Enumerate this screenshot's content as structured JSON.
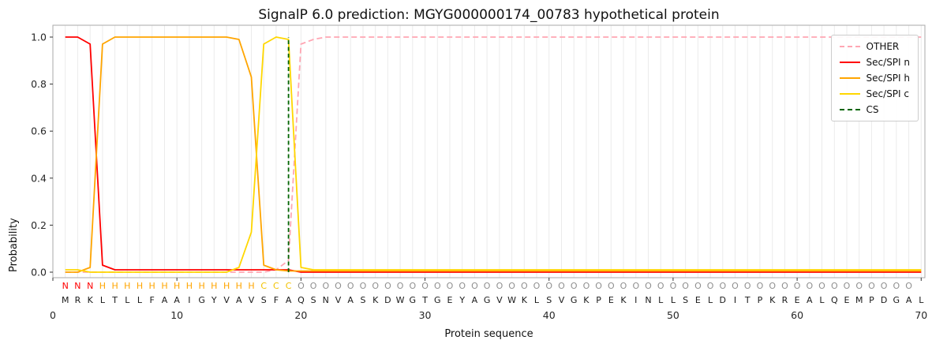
{
  "title": "SignalP 6.0 prediction: MGYG000000174_00783 hypothetical protein",
  "legend": {
    "entries": [
      {
        "label": "OTHER",
        "color": "#ffa6b3",
        "dashed": true
      },
      {
        "label": "Sec/SPI n",
        "color": "#ff0000",
        "dashed": false
      },
      {
        "label": "Sec/SPI h",
        "color": "#ffa500",
        "dashed": false
      },
      {
        "label": "Sec/SPI c",
        "color": "#ffd700",
        "dashed": false
      },
      {
        "label": "CS",
        "color": "#006400",
        "dashed": true
      }
    ]
  },
  "chart_data": {
    "type": "line",
    "title": "SignalP 6.0 prediction: MGYG000000174_00783 hypothetical protein",
    "xlabel": "Protein sequence",
    "ylabel": "Probability",
    "xlim": [
      0,
      70.3
    ],
    "ylim": [
      -0.05,
      1.05
    ],
    "x_ticks": [
      0,
      10,
      20,
      30,
      40,
      50,
      60,
      70
    ],
    "y_ticks": [
      0,
      0.2,
      0.4,
      0.6,
      0.8,
      1
    ],
    "grid": "vertical-line-per-residue",
    "legend_position": "upper right",
    "sequence": "MRKLTLLFAAIGYVAVSFAQSNVASKDWGTGEYAGVWKLSVGKPEKINLLSELDITPKREALQEMPDGAL",
    "regions": "NNNHHHHHHHHHHHHHCCCOOOOOOOOOOOOOOOOOOOOOOOOOOOOOOOOOOOOOOOOOOOOOOOOOO",
    "region_colors": {
      "N": "#ff0000",
      "H": "#ffa500",
      "C": "#f2c200",
      "O": "#8f8f8f"
    },
    "cs_position": 19,
    "cs_color": "#006400",
    "series": [
      {
        "name": "OTHER",
        "color": "#ffa6b3",
        "dash": "7,4",
        "values": [
          0,
          0,
          0,
          0,
          0,
          0,
          0,
          0,
          0,
          0,
          0,
          0,
          0,
          0,
          0,
          0,
          0,
          0.01,
          0.05,
          0.97,
          0.99,
          1,
          1,
          1,
          1,
          1,
          1,
          1,
          1,
          1,
          1,
          1,
          1,
          1,
          1,
          1,
          1,
          1,
          1,
          1,
          1,
          1,
          1,
          1,
          1,
          1,
          1,
          1,
          1,
          1,
          1,
          1,
          1,
          1,
          1,
          1,
          1,
          1,
          1,
          1,
          1,
          1,
          1,
          1,
          1,
          1,
          1,
          1,
          1,
          1
        ]
      },
      {
        "name": "Sec/SPI n",
        "color": "#ff0000",
        "dash": null,
        "values": [
          1,
          1,
          0.97,
          0.03,
          0.01,
          0.01,
          0.01,
          0.01,
          0.01,
          0.01,
          0.01,
          0.01,
          0.01,
          0.01,
          0.01,
          0.01,
          0.01,
          0.01,
          0.01,
          0,
          0,
          0,
          0,
          0,
          0,
          0,
          0,
          0,
          0,
          0,
          0,
          0,
          0,
          0,
          0,
          0,
          0,
          0,
          0,
          0,
          0,
          0,
          0,
          0,
          0,
          0,
          0,
          0,
          0,
          0,
          0,
          0,
          0,
          0,
          0,
          0,
          0,
          0,
          0,
          0,
          0,
          0,
          0,
          0,
          0,
          0,
          0,
          0,
          0,
          0
        ]
      },
      {
        "name": "Sec/SPI h",
        "color": "#ffa500",
        "dash": null,
        "values": [
          0,
          0,
          0.02,
          0.97,
          1,
          1,
          1,
          1,
          1,
          1,
          1,
          1,
          1,
          1,
          0.99,
          0.83,
          0.03,
          0.01,
          0.005,
          0.005,
          0.005,
          0.005,
          0.005,
          0.005,
          0.005,
          0.005,
          0.005,
          0.005,
          0.005,
          0.005,
          0.005,
          0.005,
          0.005,
          0.005,
          0.005,
          0.005,
          0.005,
          0.005,
          0.005,
          0.005,
          0.005,
          0.005,
          0.005,
          0.005,
          0.005,
          0.005,
          0.005,
          0.005,
          0.005,
          0.005,
          0.005,
          0.005,
          0.005,
          0.005,
          0.005,
          0.005,
          0.005,
          0.005,
          0.005,
          0.005,
          0.005,
          0.005,
          0.005,
          0.005,
          0.005,
          0.005,
          0.005,
          0.005,
          0.005,
          0.005
        ]
      },
      {
        "name": "Sec/SPI c",
        "color": "#ffd700",
        "dash": null,
        "values": [
          0.01,
          0.01,
          0,
          0,
          0,
          0,
          0,
          0,
          0,
          0,
          0,
          0,
          0,
          0,
          0.02,
          0.17,
          0.97,
          1,
          0.99,
          0.02,
          0.01,
          0.01,
          0.01,
          0.01,
          0.01,
          0.01,
          0.01,
          0.01,
          0.01,
          0.01,
          0.01,
          0.01,
          0.01,
          0.01,
          0.01,
          0.01,
          0.01,
          0.01,
          0.01,
          0.01,
          0.01,
          0.01,
          0.01,
          0.01,
          0.01,
          0.01,
          0.01,
          0.01,
          0.01,
          0.01,
          0.01,
          0.01,
          0.01,
          0.01,
          0.01,
          0.01,
          0.01,
          0.01,
          0.01,
          0.01,
          0.01,
          0.01,
          0.01,
          0.01,
          0.01,
          0.01,
          0.01,
          0.01,
          0.01,
          0.01
        ]
      }
    ]
  }
}
